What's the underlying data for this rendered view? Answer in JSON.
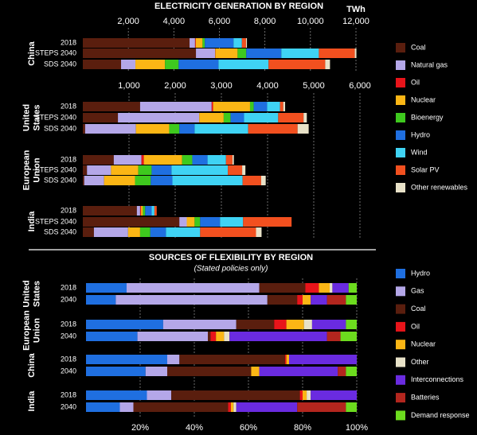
{
  "chart_data": [
    {
      "type": "stacked-bar-h",
      "title": "ELECTRICITY GENERATION BY REGION",
      "unit": "TWh",
      "series": [
        {
          "name": "Coal",
          "color": "#5a1e0e"
        },
        {
          "name": "Natural gas",
          "color": "#b4a7e8"
        },
        {
          "name": "Oil",
          "color": "#e8141a"
        },
        {
          "name": "Nuclear",
          "color": "#fbb615"
        },
        {
          "name": "Bioenergy",
          "color": "#3ec91e"
        },
        {
          "name": "Hydro",
          "color": "#1f6fe0"
        },
        {
          "name": "Wind",
          "color": "#3fd3f4"
        },
        {
          "name": "Solar PV",
          "color": "#f2501f"
        },
        {
          "name": "Other renewables",
          "color": "#e8e2c8"
        }
      ],
      "groups": [
        {
          "xlim": [
            0,
            12000
          ],
          "xticks": [
            {
              "value": 2000,
              "label": "2,000"
            },
            {
              "value": 4000,
              "label": "4,000"
            },
            {
              "value": 6000,
              "label": "6,000"
            },
            {
              "value": 8000,
              "label": "8,000"
            },
            {
              "value": 10000,
              "label": "10,000"
            },
            {
              "value": 12000,
              "label": "12,000"
            }
          ],
          "panels": [
            {
              "label": [
                "China"
              ],
              "categories": [
                "2018",
                "STEPS 2040",
                "SDS 2040"
              ],
              "values": [
                [
                  4690,
                  4970,
                  1680
                ],
                [
                  240,
                  840,
                  630
                ],
                [
                  30,
                  10,
                  0
                ],
                [
                  300,
                  980,
                  1300
                ],
                [
                  100,
                  380,
                  600
                ],
                [
                  1260,
                  1540,
                  1750
                ],
                [
                  370,
                  1650,
                  2200
                ],
                [
                  180,
                  1580,
                  2490
                ],
                [
                  40,
                  70,
                  210
                ]
              ]
            }
          ]
        },
        {
          "xlim": [
            0,
            6000
          ],
          "xticks": [
            {
              "value": 1000,
              "label": "1,000"
            },
            {
              "value": 2000,
              "label": "2,000"
            },
            {
              "value": 3000,
              "label": "3,000"
            },
            {
              "value": 4000,
              "label": "4,000"
            },
            {
              "value": 5000,
              "label": "5,000"
            },
            {
              "value": 6000,
              "label": "6,000"
            }
          ],
          "panels": [
            {
              "label": [
                "United",
                "States"
              ],
              "categories": [
                "2018",
                "STEPS 2040",
                "SDS 2040"
              ],
              "values": [
                [
                  1240,
                  760,
                  50
                ],
                [
                  1550,
                  1760,
                  1100
                ],
                [
                  30,
                  0,
                  0
                ],
                [
                  800,
                  530,
                  720
                ],
                [
                  80,
                  150,
                  220
                ],
                [
                  290,
                  290,
                  330
                ],
                [
                  280,
                  740,
                  1160
                ],
                [
                  70,
                  550,
                  1070
                ],
                [
                  40,
                  70,
                  240
                ]
              ]
            },
            {
              "label": [
                "European",
                "Union"
              ],
              "categories": [
                "2018",
                "STEPS 2040",
                "SDS 2040"
              ],
              "values": [
                [
                  670,
                  90,
                  30
                ],
                [
                  600,
                  520,
                  430
                ],
                [
                  50,
                  0,
                  0
                ],
                [
                  830,
                  590,
                  670
                ],
                [
                  220,
                  290,
                  340
                ],
                [
                  330,
                  430,
                  470
                ],
                [
                  400,
                  1220,
                  1520
                ],
                [
                  140,
                  310,
                  400
                ],
                [
                  30,
                  70,
                  100
                ]
              ]
            },
            {
              "label": [
                "India"
              ],
              "categories": [
                "2018",
                "STEPS 2040",
                "SDS 2040"
              ],
              "values": [
                [
                  1170,
                  2090,
                  240
                ],
                [
                  70,
                  160,
                  740
                ],
                [
                  20,
                  0,
                  0
                ],
                [
                  40,
                  170,
                  260
                ],
                [
                  50,
                  120,
                  220
                ],
                [
                  140,
                  430,
                  340
                ],
                [
                  60,
                  500,
                  740
                ],
                [
                  50,
                  1050,
                  1210
                ],
                [
                  0,
                  0,
                  120
                ]
              ]
            }
          ]
        }
      ]
    },
    {
      "type": "stacked-bar-h",
      "title": "SOURCES OF FLEXIBILITY BY REGION",
      "subtitle": "(Stated policies only)",
      "series": [
        {
          "name": "Hydro",
          "color": "#1f6fe0"
        },
        {
          "name": "Gas",
          "color": "#b4a7e8"
        },
        {
          "name": "Coal",
          "color": "#5a1e0e"
        },
        {
          "name": "Oil",
          "color": "#e8141a"
        },
        {
          "name": "Nuclear",
          "color": "#fbb615"
        },
        {
          "name": "Other",
          "color": "#e8e2c8"
        },
        {
          "name": "Interconnections",
          "color": "#6a2be0"
        },
        {
          "name": "Batteries",
          "color": "#b3261e"
        },
        {
          "name": "Demand response",
          "color": "#6cdb1e"
        }
      ],
      "groups": [
        {
          "xlim": [
            0,
            100
          ],
          "xticks": [
            {
              "value": 20,
              "label": "20%"
            },
            {
              "value": 40,
              "label": "40%"
            },
            {
              "value": 60,
              "label": "60%"
            },
            {
              "value": 80,
              "label": "80%"
            },
            {
              "value": 100,
              "label": "100%"
            }
          ],
          "panels": [
            {
              "label": [
                "United",
                "States"
              ],
              "categories": [
                "2018",
                "2040"
              ],
              "values": [
                [
                  15,
                  11
                ],
                [
                  49,
                  56
                ],
                [
                  17,
                  11
                ],
                [
                  5,
                  2
                ],
                [
                  4,
                  3
                ],
                [
                  1,
                  0
                ],
                [
                  6,
                  6
                ],
                [
                  0,
                  7
                ],
                [
                  3,
                  4
                ]
              ]
            },
            {
              "label": [
                "European",
                "Union"
              ],
              "categories": [
                "2018",
                "2040"
              ],
              "values": [
                [
                  28.5,
                  19
                ],
                [
                  27,
                  26
                ],
                [
                  14,
                  1
                ],
                [
                  4.5,
                  2
                ],
                [
                  6.5,
                  3
                ],
                [
                  3,
                  2
                ],
                [
                  12.5,
                  36
                ],
                [
                  0,
                  5
                ],
                [
                  4,
                  6
                ]
              ]
            },
            {
              "label": [
                "China"
              ],
              "categories": [
                "2018",
                "2040"
              ],
              "values": [
                [
                  30,
                  22
                ],
                [
                  4.5,
                  8
                ],
                [
                  39,
                  31
                ],
                [
                  0.5,
                  0
                ],
                [
                  1,
                  3
                ],
                [
                  0,
                  0
                ],
                [
                  25,
                  29
                ],
                [
                  0,
                  3
                ],
                [
                  0,
                  4
                ]
              ]
            },
            {
              "label": [
                "India"
              ],
              "categories": [
                "2018",
                "2040"
              ],
              "values": [
                [
                  22.5,
                  12.5
                ],
                [
                  9,
                  5
                ],
                [
                  47.5,
                  35
                ],
                [
                  1,
                  1
                ],
                [
                  1.5,
                  1
                ],
                [
                  1.5,
                  1
                ],
                [
                  17,
                  22.5
                ],
                [
                  0,
                  18
                ],
                [
                  0,
                  4
                ]
              ]
            }
          ]
        }
      ]
    }
  ]
}
